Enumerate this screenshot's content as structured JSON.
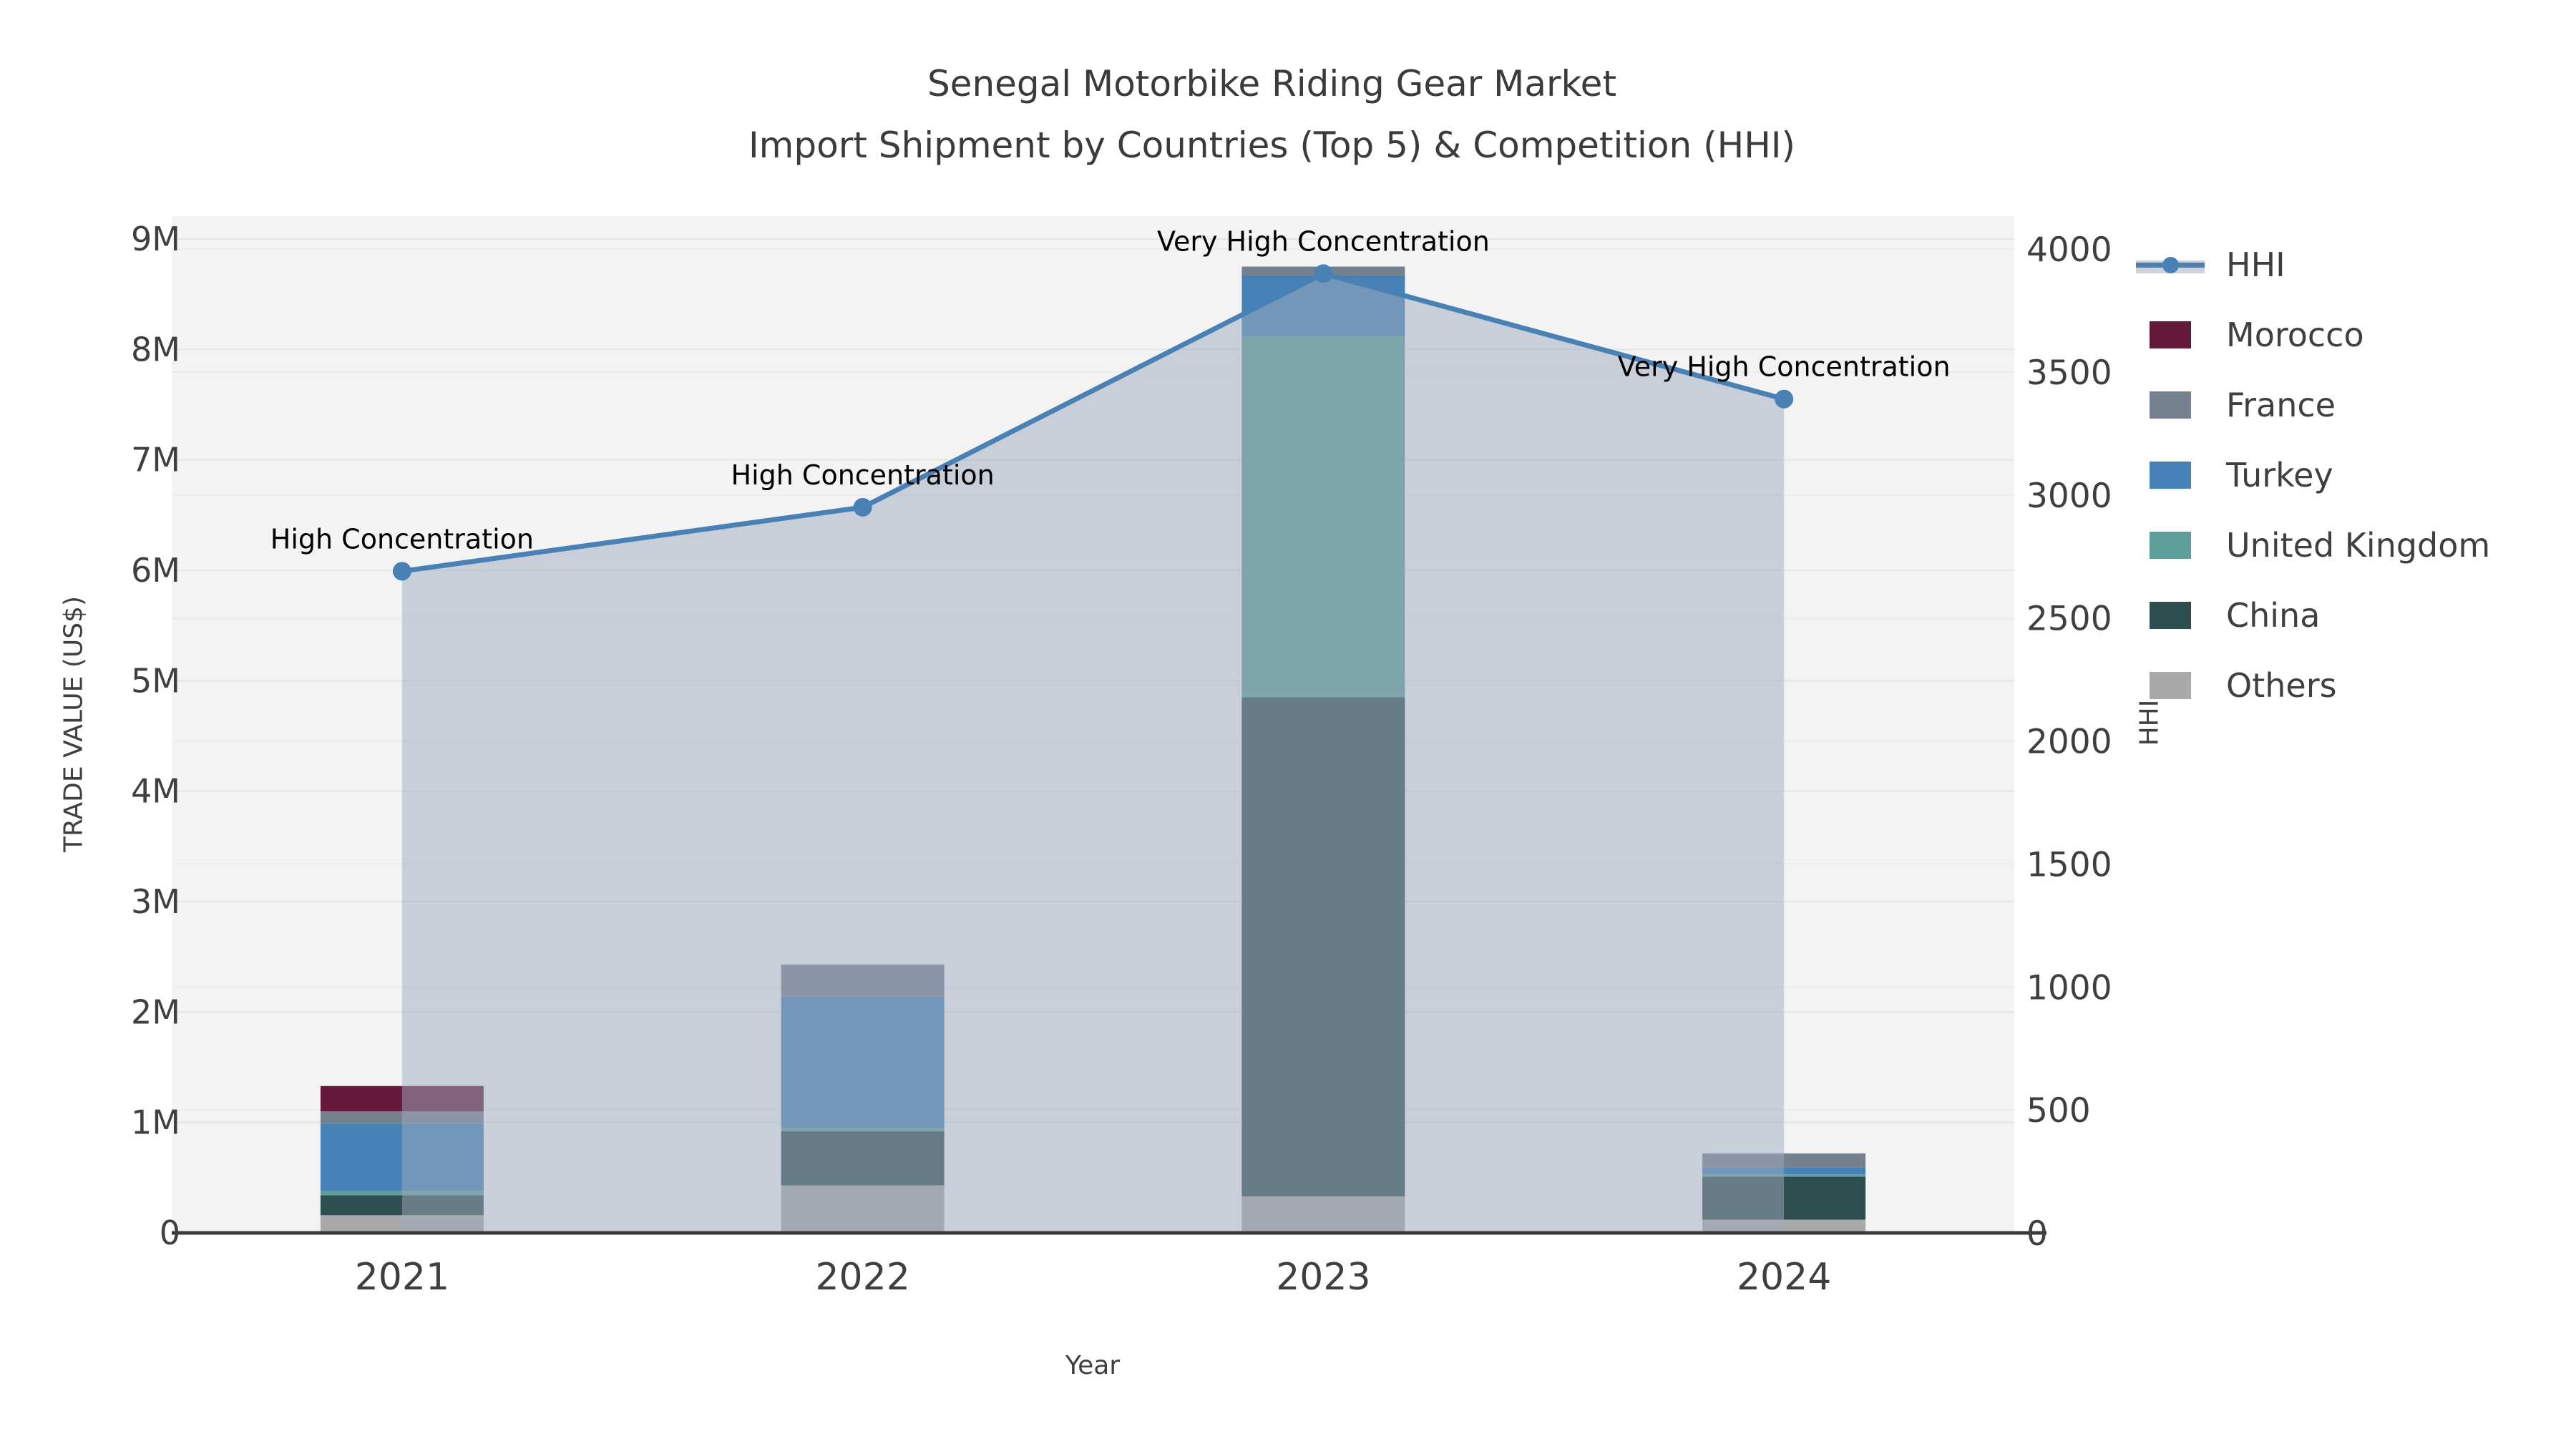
{
  "title": {
    "line1": "Senegal Motorbike Riding Gear Market",
    "line2": "Import Shipment by Countries (Top 5) & Competition (HHI)"
  },
  "axes": {
    "x_label": "Year",
    "y_left_label": "TRADE VALUE (US$)",
    "y_right_label": "HHI"
  },
  "legend": [
    {
      "label": "HHI",
      "swatch": "line"
    },
    {
      "label": "Morocco",
      "swatch": "square"
    },
    {
      "label": "France",
      "swatch": "square"
    },
    {
      "label": "Turkey",
      "swatch": "square"
    },
    {
      "label": "United Kingdom",
      "swatch": "square"
    },
    {
      "label": "China",
      "swatch": "square"
    },
    {
      "label": "Others",
      "swatch": "square"
    }
  ],
  "chart_data": {
    "type": "combo: stacked-bar + line",
    "categories": [
      "2021",
      "2022",
      "2023",
      "2024"
    ],
    "bar_value_unit": "US$ million",
    "stack_order_bottom_to_top": [
      "Others",
      "China",
      "United Kingdom",
      "Turkey",
      "France",
      "Morocco"
    ],
    "series": [
      {
        "name": "Morocco",
        "color": "#64193a",
        "values": [
          0.23,
          0,
          0,
          0
        ]
      },
      {
        "name": "France",
        "color": "#75818f",
        "values": [
          0.11,
          0.29,
          0.08,
          0.13
        ]
      },
      {
        "name": "Turkey",
        "color": "#4681b7",
        "values": [
          0.61,
          1.19,
          0.55,
          0.06
        ]
      },
      {
        "name": "United Kingdom",
        "color": "#5f9f9b",
        "values": [
          0.04,
          0.03,
          3.27,
          0.02
        ]
      },
      {
        "name": "China",
        "color": "#2e4d4e",
        "values": [
          0.18,
          0.49,
          4.52,
          0.39
        ]
      },
      {
        "name": "Others",
        "color": "#a9a9a9",
        "values": [
          0.16,
          0.43,
          0.33,
          0.12
        ]
      }
    ],
    "line_series": {
      "name": "HHI",
      "color": "#4a81b5",
      "area_fill": "rgba(160,172,192,0.5)",
      "values": [
        2690,
        2950,
        3900,
        3390
      ]
    },
    "annotations": [
      {
        "category": "2021",
        "text": "High Concentration"
      },
      {
        "category": "2022",
        "text": "High Concentration"
      },
      {
        "category": "2023",
        "text": "Very High Concentration"
      },
      {
        "category": "2024",
        "text": "Very High Concentration"
      }
    ],
    "y_left": {
      "min": 0,
      "max_musd": 9,
      "tick_labels": [
        "0",
        "1M",
        "2M",
        "3M",
        "4M",
        "5M",
        "6M",
        "7M",
        "8M",
        "9M"
      ]
    },
    "y_right": {
      "min": 0,
      "max": 4000,
      "tick_labels": [
        "0",
        "500",
        "1000",
        "1500",
        "2000",
        "2500",
        "3000",
        "3500",
        "4000"
      ]
    },
    "grid": true,
    "legend_position": "right",
    "plot_bg": "#f3f3f3",
    "grid_color_left": "#e4e4e4",
    "grid_color_right": "#ececec",
    "axis_line_color": "#3a3a3a",
    "tick_text_color": "#3f3f3f",
    "annotation_text_color": "#000000"
  }
}
